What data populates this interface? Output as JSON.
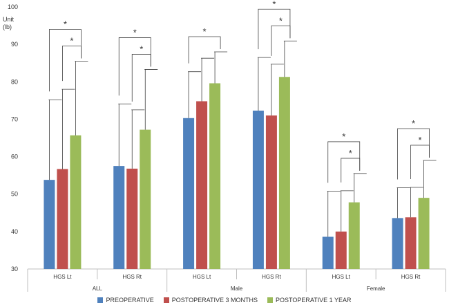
{
  "chart_data": {
    "type": "bar",
    "title": "",
    "ylabel": "Unit (lb)",
    "ylabel_lines": [
      "Unit",
      "(lb)"
    ],
    "ylim": [
      30,
      100
    ],
    "yticks": [
      30,
      40,
      50,
      60,
      70,
      80,
      90,
      100
    ],
    "groups": [
      {
        "label": "ALL",
        "categories": [
          "HGS Lt",
          "HGS Rt"
        ]
      },
      {
        "label": "Male",
        "categories": [
          "HGS Lt",
          "HGS Rt"
        ]
      },
      {
        "label": "Female",
        "categories": [
          "HGS Lt",
          "HGS Rt"
        ]
      }
    ],
    "categories": [
      "HGS Lt",
      "HGS Rt",
      "HGS Lt",
      "HGS Rt",
      "HGS Lt",
      "HGS Rt"
    ],
    "series": [
      {
        "name": "PREOPERATIVE",
        "color": "#4f81bd",
        "values": [
          53.8,
          57.5,
          70.3,
          72.3,
          38.6,
          43.6
        ],
        "error_upper": [
          75.2,
          74.1,
          82.7,
          86.5,
          50.8,
          51.7
        ]
      },
      {
        "name": "POSTOPERATIVE 3 MONTHS",
        "color": "#c0504d",
        "values": [
          56.7,
          56.8,
          74.8,
          71.0,
          40.0,
          43.8
        ],
        "error_upper": [
          78.0,
          72.5,
          86.3,
          84.7,
          50.9,
          51.8
        ]
      },
      {
        "name": "POSTOPERATIVE 1 YEAR",
        "color": "#9bbb59",
        "values": [
          65.7,
          67.2,
          79.6,
          81.3,
          47.8,
          49.0
        ],
        "error_upper": [
          85.5,
          83.3,
          88.0,
          90.9,
          55.5,
          59.0
        ]
      }
    ],
    "significance": [
      {
        "category_index": 0,
        "from_series": 0,
        "to_series": 2,
        "label": "*"
      },
      {
        "category_index": 0,
        "from_series": 1,
        "to_series": 2,
        "label": "*"
      },
      {
        "category_index": 1,
        "from_series": 0,
        "to_series": 2,
        "label": "*"
      },
      {
        "category_index": 1,
        "from_series": 1,
        "to_series": 2,
        "label": "*"
      },
      {
        "category_index": 2,
        "from_series": 0,
        "to_series": 2,
        "label": "*"
      },
      {
        "category_index": 3,
        "from_series": 0,
        "to_series": 2,
        "label": "*"
      },
      {
        "category_index": 3,
        "from_series": 1,
        "to_series": 2,
        "label": "*"
      },
      {
        "category_index": 4,
        "from_series": 0,
        "to_series": 2,
        "label": "*"
      },
      {
        "category_index": 4,
        "from_series": 1,
        "to_series": 2,
        "label": "*"
      },
      {
        "category_index": 5,
        "from_series": 0,
        "to_series": 2,
        "label": "*"
      },
      {
        "category_index": 5,
        "from_series": 1,
        "to_series": 2,
        "label": "*"
      }
    ],
    "legend_position": "bottom",
    "grid": false
  }
}
